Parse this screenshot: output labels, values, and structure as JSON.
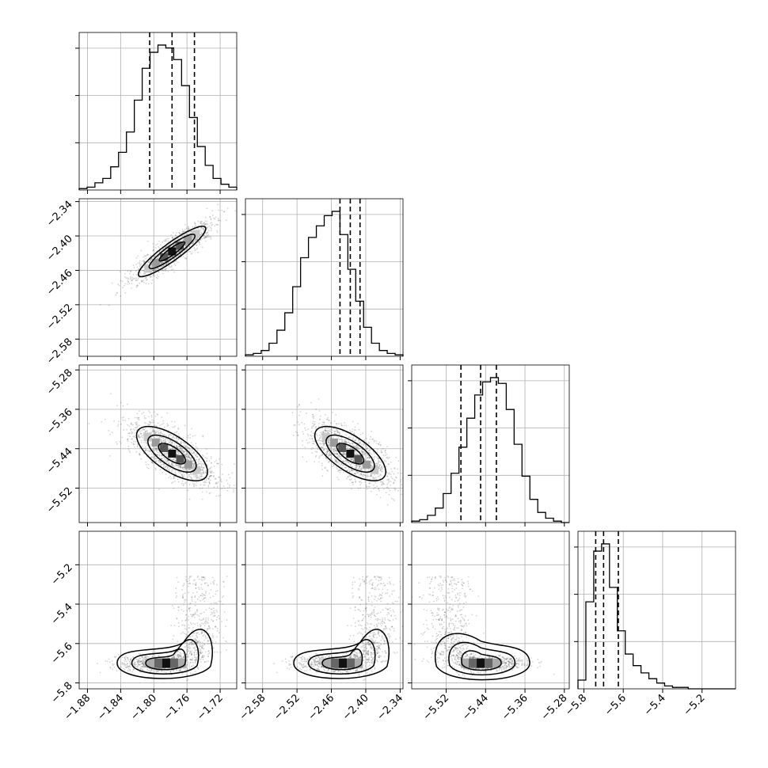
{
  "chart_data": {
    "type": "corner",
    "grid": true,
    "params": [
      {
        "index": 0,
        "range": [
          -1.89,
          -1.7
        ],
        "ticks": [
          "−1.88",
          "−1.84",
          "−1.80",
          "−1.76",
          "−1.72"
        ],
        "tick_values": [
          -1.88,
          -1.84,
          -1.8,
          -1.76,
          -1.72
        ],
        "quantiles": [
          -1.805,
          -1.778,
          -1.751
        ]
      },
      {
        "index": 1,
        "range": [
          -2.61,
          -2.335
        ],
        "ticks": [
          "−2.58",
          "−2.52",
          "−2.46",
          "−2.40",
          "−2.34"
        ],
        "tick_values": [
          -2.58,
          -2.52,
          -2.46,
          -2.4,
          -2.34
        ],
        "quantiles": [
          -2.445,
          -2.427,
          -2.41
        ]
      },
      {
        "index": 2,
        "range": [
          -5.59,
          -5.27
        ],
        "ticks": [
          "−5.52",
          "−5.44",
          "−5.36",
          "−5.28"
        ],
        "tick_values": [
          -5.52,
          -5.44,
          -5.36,
          -5.28
        ],
        "tick_values_y": [
          -5.52,
          -5.44,
          -5.36,
          -5.28
        ],
        "quantiles": [
          -5.49,
          -5.45,
          -5.418
        ]
      },
      {
        "index": 3,
        "range": [
          -5.83,
          -5.03
        ],
        "ticks": [
          "−5.8",
          "−5.6",
          "−5.4",
          "−5.2"
        ],
        "tick_values": [
          -5.8,
          -5.6,
          -5.4,
          -5.2
        ],
        "ytick_values": [
          -5.8,
          -5.6,
          -5.4,
          -5.2
        ],
        "quantiles": [
          -5.74,
          -5.7,
          -5.625
        ]
      }
    ],
    "histograms": [
      [
        1,
        2,
        5,
        8,
        16,
        26,
        40,
        62,
        84,
        95,
        100,
        98,
        90,
        72,
        50,
        30,
        17,
        8,
        4,
        2
      ],
      [
        1,
        2,
        4,
        9,
        18,
        30,
        48,
        68,
        82,
        90,
        97,
        100,
        84,
        60,
        38,
        20,
        9,
        4,
        2,
        1
      ],
      [
        1,
        2,
        5,
        10,
        20,
        34,
        52,
        72,
        88,
        97,
        100,
        96,
        78,
        54,
        32,
        16,
        7,
        3,
        1,
        0
      ],
      [
        6,
        60,
        95,
        100,
        70,
        40,
        24,
        16,
        11,
        7,
        4,
        2,
        1,
        1,
        0,
        0,
        0,
        0,
        0,
        0
      ]
    ],
    "pair_contours": [
      {
        "x": 0,
        "y": 1,
        "center": [
          -1.778,
          -2.427
        ],
        "shape": "correlated",
        "corr": 0.94
      },
      {
        "x": 0,
        "y": 2,
        "center": [
          -1.778,
          -5.45
        ],
        "shape": "correlated",
        "corr": -0.72
      },
      {
        "x": 1,
        "y": 2,
        "center": [
          -2.427,
          -5.45
        ],
        "shape": "correlated",
        "corr": -0.72
      },
      {
        "x": 0,
        "y": 3,
        "center": [
          -1.785,
          -5.7
        ],
        "shape": "banana-up-right"
      },
      {
        "x": 1,
        "y": 3,
        "center": [
          -2.44,
          -5.7
        ],
        "shape": "banana-up-right"
      },
      {
        "x": 2,
        "y": 3,
        "center": [
          -5.45,
          -5.7
        ],
        "shape": "banana-up-left"
      }
    ]
  }
}
